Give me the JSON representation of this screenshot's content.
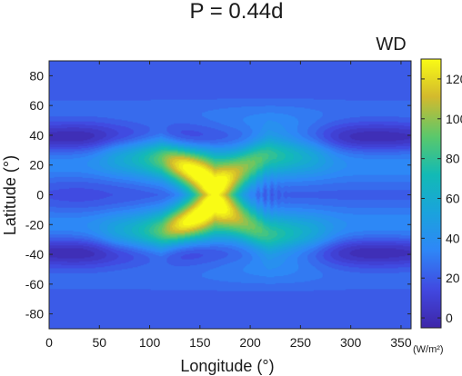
{
  "chart_data": {
    "type": "heatmap",
    "title": "P = 0.44d",
    "xlabel": "Longitude (°)",
    "ylabel": "Latitude (°)",
    "xlim": [
      0,
      360
    ],
    "ylim": [
      -90,
      90
    ],
    "xticks": [
      0,
      50,
      100,
      150,
      200,
      250,
      300,
      350
    ],
    "yticks": [
      80,
      60,
      40,
      20,
      0,
      -20,
      -40,
      -60,
      -80
    ],
    "colorbar": {
      "title": "WD",
      "unit": "(W/m²)",
      "range": [
        -5,
        130
      ],
      "ticks": [
        120,
        100,
        80,
        60,
        40,
        20,
        0
      ],
      "colormap": "parula"
    },
    "features": [
      {
        "description": "X-shaped band of high values",
        "lon_center": 165,
        "lat_center": 0
      },
      {
        "peak_value": 120,
        "lon": 165,
        "lat": 0
      },
      {
        "value": 95,
        "lon": 140,
        "lat": 22
      },
      {
        "value": 95,
        "lon": 140,
        "lat": -22
      },
      {
        "value": 5,
        "lon": 30,
        "lat": 38
      },
      {
        "value": 5,
        "lon": 30,
        "lat": -38
      },
      {
        "value": 5,
        "lon": 320,
        "lat": 40
      },
      {
        "value": 5,
        "lon": 320,
        "lat": -40
      }
    ]
  }
}
